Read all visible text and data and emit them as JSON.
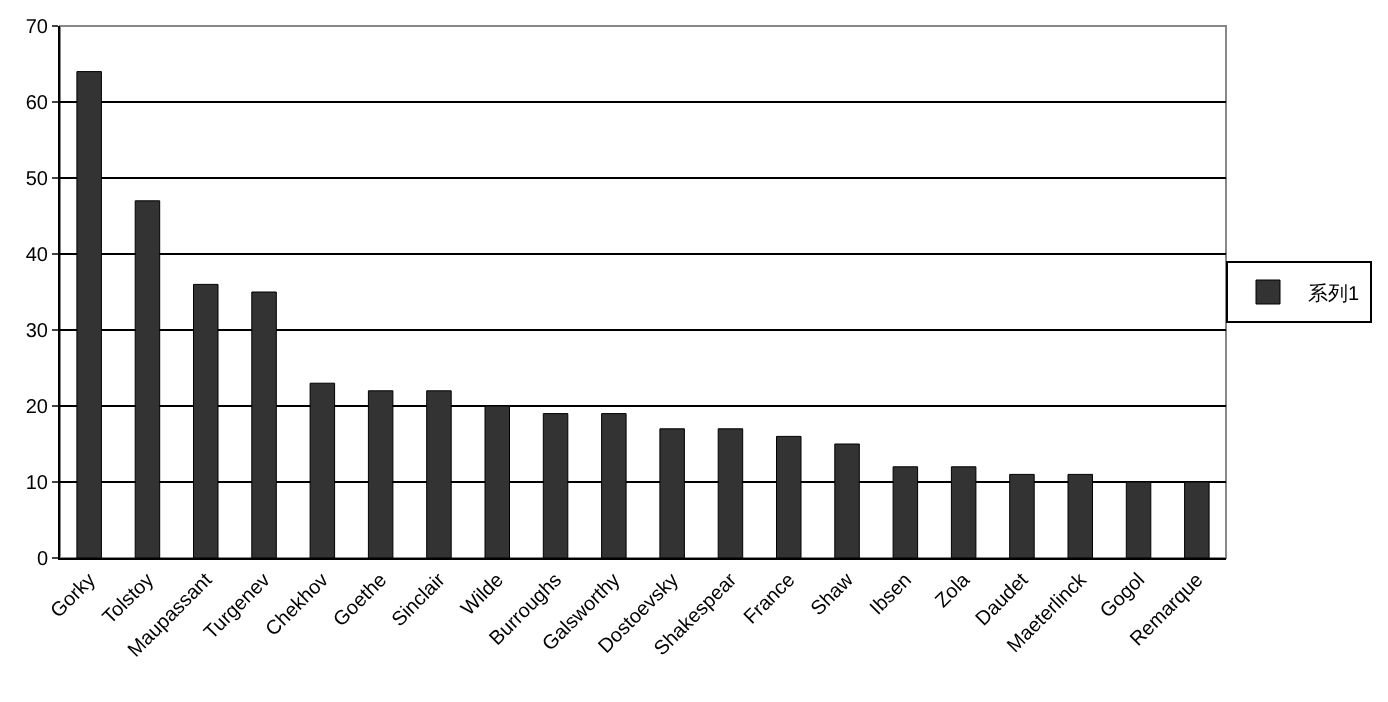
{
  "chart_data": {
    "type": "bar",
    "categories": [
      "Gorky",
      "Tolstoy",
      "Maupassant",
      "Turgenev",
      "Chekhov",
      "Goethe",
      "Sinclair",
      "Wilde",
      "Burroughs",
      "Galsworthy",
      "Dostoevsky",
      "Shakespear",
      "France",
      "Shaw",
      "Ibsen",
      "Zola",
      "Daudet",
      "Maeterlinck",
      "Gogol",
      "Remarque"
    ],
    "series": [
      {
        "name": "系列1",
        "color": "#333333",
        "values": [
          64,
          47,
          36,
          35,
          23,
          22,
          22,
          20,
          19,
          19,
          17,
          17,
          16,
          15,
          12,
          12,
          11,
          11,
          10,
          10
        ]
      }
    ],
    "ylim": [
      0,
      70
    ],
    "yticks": [
      0,
      10,
      20,
      30,
      40,
      50,
      60,
      70
    ],
    "grid": "y",
    "legend": "right"
  }
}
